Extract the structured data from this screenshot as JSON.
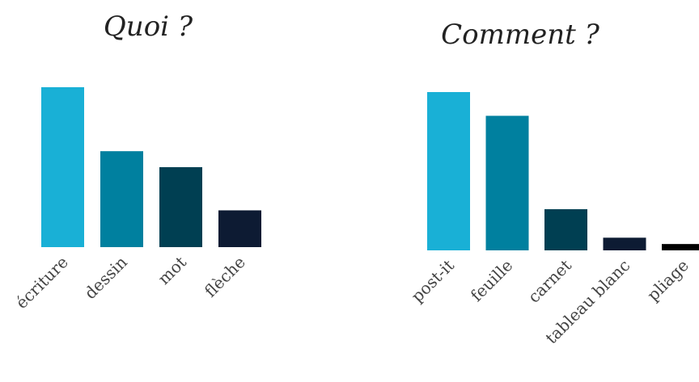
{
  "chart_data": [
    {
      "type": "bar",
      "title": "Quoi ?",
      "categories": [
        "écriture",
        "dessin",
        "mot",
        "flèche"
      ],
      "values": [
        100,
        60,
        50,
        23
      ],
      "ylim": [
        0,
        100
      ],
      "colors": [
        "#19b0d6",
        "#00809f",
        "#003f52",
        "#0d1b33"
      ],
      "xlabel": "",
      "ylabel": "",
      "grid": false,
      "legend": "none"
    },
    {
      "type": "bar",
      "title": "Comment ?",
      "categories": [
        "post-it",
        "feuille",
        "carnet",
        "tableau blanc",
        "pliage"
      ],
      "values": [
        100,
        85,
        26,
        8,
        4
      ],
      "ylim": [
        0,
        100
      ],
      "colors": [
        "#19b0d6",
        "#00809f",
        "#003f52",
        "#0d1b33",
        "#000000"
      ],
      "xlabel": "",
      "ylabel": "",
      "grid": false,
      "legend": "none"
    }
  ]
}
